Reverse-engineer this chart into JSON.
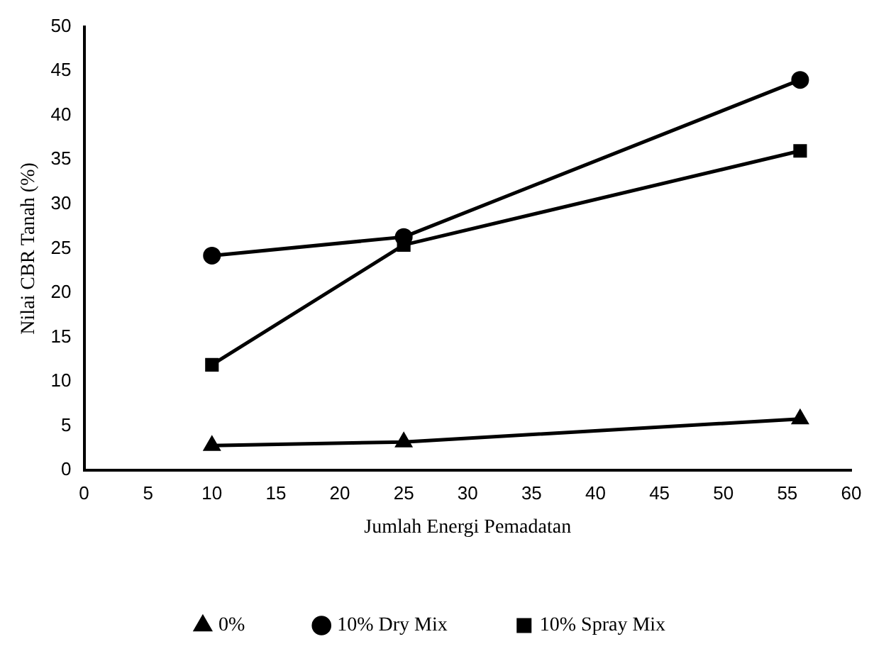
{
  "chart_data": {
    "type": "line",
    "xlabel": "Jumlah Energi Pemadatan",
    "ylabel": "Nilai CBR Tanah (%)",
    "x": [
      10,
      25,
      56
    ],
    "series": [
      {
        "name": "0%",
        "color": "#000000",
        "marker": "triangle",
        "values": [
          2.8,
          3.2,
          5.8
        ]
      },
      {
        "name": "10% Dry Mix",
        "color": "#000000",
        "marker": "circle",
        "values": [
          24.2,
          26.3,
          44
        ]
      },
      {
        "name": "10% Spray Mix",
        "color": "#000000",
        "marker": "square",
        "values": [
          11.9,
          25.4,
          36
        ]
      }
    ],
    "xlim": [
      0,
      60
    ],
    "xticks": [
      0,
      5,
      10,
      15,
      20,
      25,
      30,
      35,
      40,
      45,
      50,
      55,
      60
    ],
    "ylim": [
      0,
      50
    ],
    "yticks": [
      0,
      5,
      10,
      15,
      20,
      25,
      30,
      35,
      40,
      45,
      50
    ],
    "grid": false,
    "legend": "bottom",
    "line_style": "solid"
  }
}
